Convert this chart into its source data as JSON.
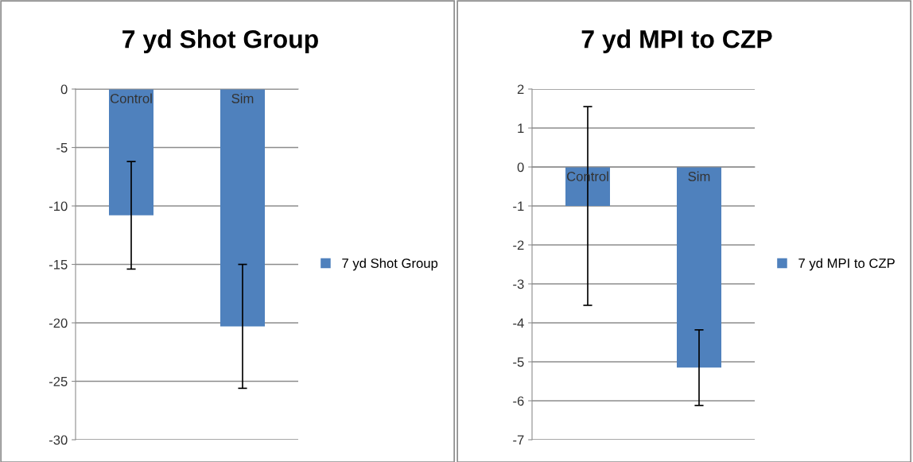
{
  "chart_data": [
    {
      "type": "bar",
      "title": "7 yd Shot Group",
      "categories": [
        "Control",
        "Sim"
      ],
      "series": [
        {
          "name": "7 yd Shot Group",
          "color": "#4f81bd",
          "values": [
            -10.8,
            -20.3
          ],
          "errors": [
            4.6,
            5.3
          ]
        }
      ],
      "ylim": [
        -30,
        0
      ],
      "yticks": [
        -30,
        -25,
        -20,
        -15,
        -10,
        -5,
        0
      ],
      "grid": "y",
      "legend": "right"
    },
    {
      "type": "bar",
      "title": "7 yd MPI to CZP",
      "categories": [
        "Control",
        "Sim"
      ],
      "series": [
        {
          "name": "7 yd MPI to CZP",
          "color": "#4f81bd",
          "values": [
            -1.0,
            -5.15
          ],
          "errors": [
            2.55,
            0.97
          ]
        }
      ],
      "ylim": [
        -7,
        2
      ],
      "yticks": [
        -7,
        -6,
        -5,
        -4,
        -3,
        -2,
        -1,
        0,
        1,
        2
      ],
      "grid": "y",
      "legend": "right"
    }
  ]
}
